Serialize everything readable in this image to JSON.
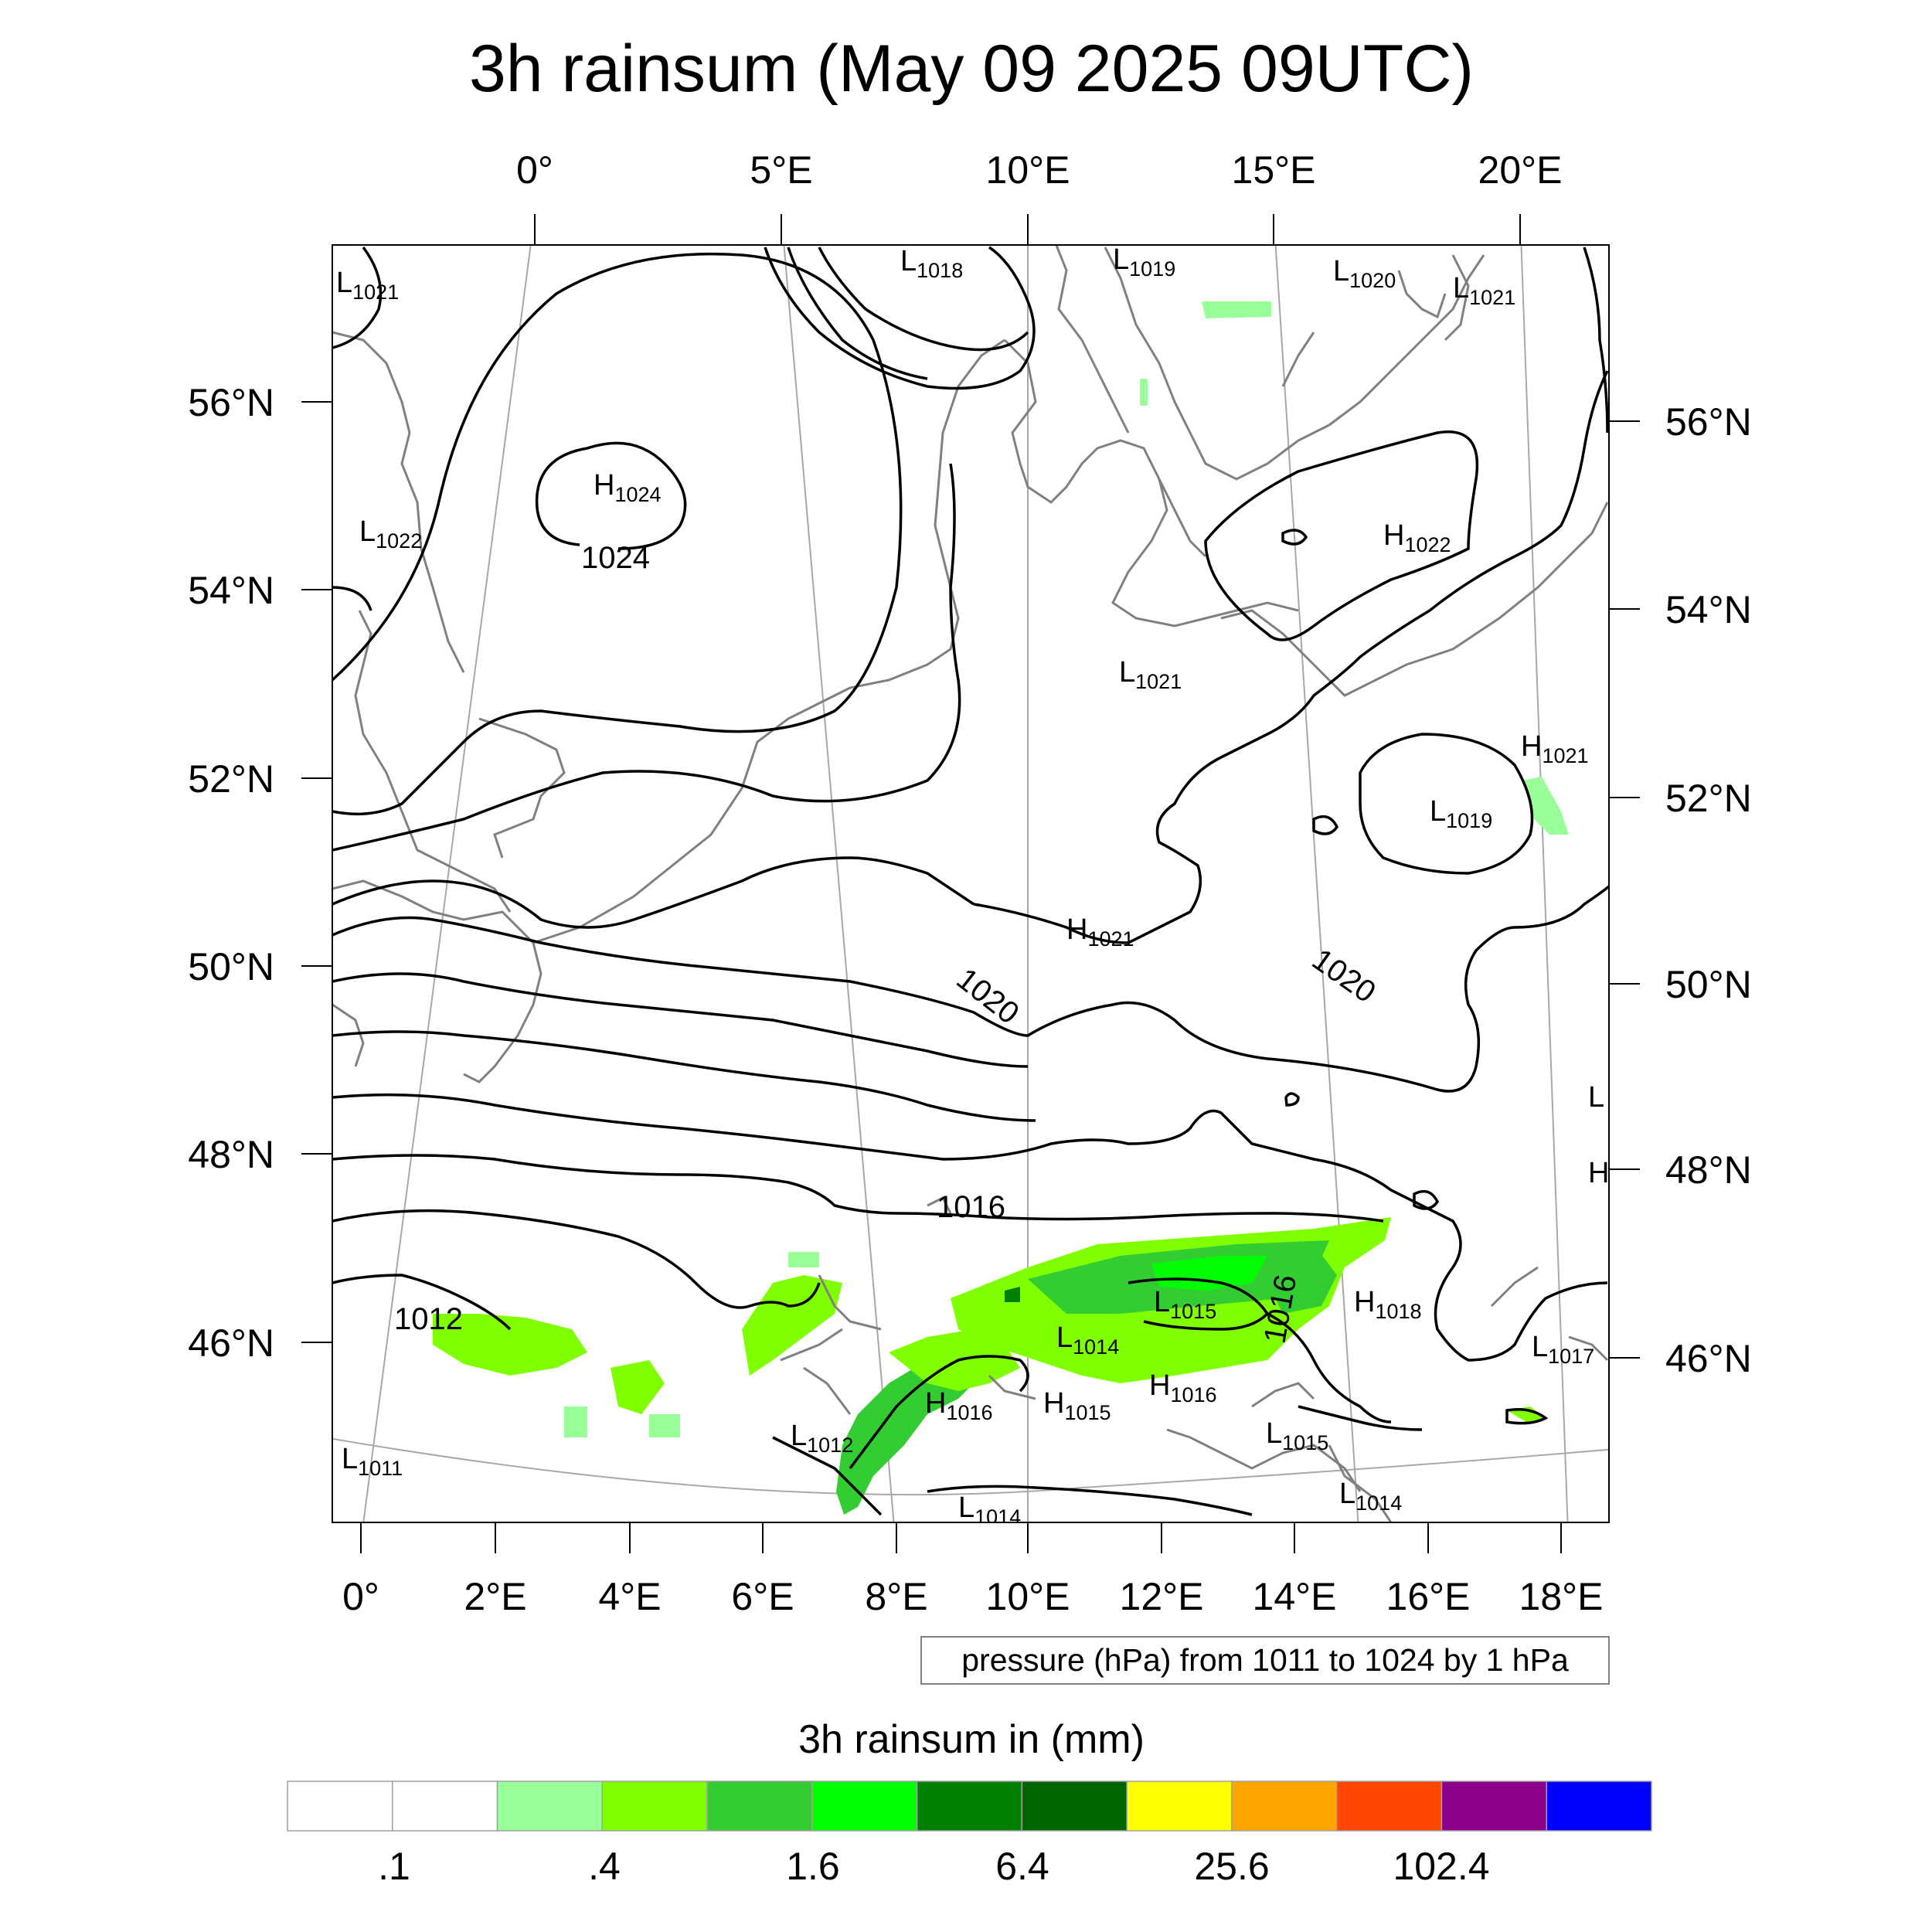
{
  "title": "3h rainsum (May 09 2025 09UTC)",
  "top_axis": [
    "0°",
    "5°E",
    "10°E",
    "15°E",
    "20°E"
  ],
  "bottom_axis": [
    "0°",
    "2°E",
    "4°E",
    "6°E",
    "8°E",
    "10°E",
    "12°E",
    "14°E",
    "16°E",
    "18°E"
  ],
  "left_axis": [
    "56°N",
    "54°N",
    "52°N",
    "50°N",
    "48°N",
    "46°N"
  ],
  "right_axis": [
    "56°N",
    "54°N",
    "52°N",
    "50°N",
    "48°N",
    "46°N"
  ],
  "pressure_centers": [
    {
      "type": "L",
      "value": "1021"
    },
    {
      "type": "L",
      "value": "1018"
    },
    {
      "type": "L",
      "value": "1019"
    },
    {
      "type": "L",
      "value": "1020"
    },
    {
      "type": "L",
      "value": "1021"
    },
    {
      "type": "H",
      "value": "1024"
    },
    {
      "type": "L",
      "value": "1022"
    },
    {
      "type": "H",
      "value": "1022"
    },
    {
      "type": "L",
      "value": "1021"
    },
    {
      "type": "H",
      "value": "1021"
    },
    {
      "type": "L",
      "value": "1019"
    },
    {
      "type": "H",
      "value": "1021"
    },
    {
      "type": "L",
      "value": "1015"
    },
    {
      "type": "H",
      "value": "1018"
    },
    {
      "type": "L",
      "value": "1014"
    },
    {
      "type": "L",
      "value": "1017"
    },
    {
      "type": "H",
      "value": "1016"
    },
    {
      "type": "H",
      "value": "1015"
    },
    {
      "type": "H",
      "value": "1016"
    },
    {
      "type": "L",
      "value": "1012"
    },
    {
      "type": "L",
      "value": "1015"
    },
    {
      "type": "L",
      "value": "1011"
    },
    {
      "type": "L",
      "value": "1014"
    },
    {
      "type": "L",
      "value": "1014"
    }
  ],
  "isobar_labels": [
    "1024",
    "1020",
    "1020",
    "1016",
    "1016",
    "1012"
  ],
  "contour_note": "pressure (hPa) from 1011 to 1024 by 1 hPa",
  "colorbar": {
    "title": "3h rainsum in (mm)",
    "colors": [
      "#ffffff",
      "#ffffff",
      "#99ff99",
      "#80ff00",
      "#33cc33",
      "#00ff00",
      "#008000",
      "#006400",
      "#ffff00",
      "#ffa500",
      "#ff4500",
      "#8b008b",
      "#0000ff"
    ],
    "labels": [
      ".1",
      ".4",
      "1.6",
      "6.4",
      "25.6",
      "102.4"
    ]
  }
}
